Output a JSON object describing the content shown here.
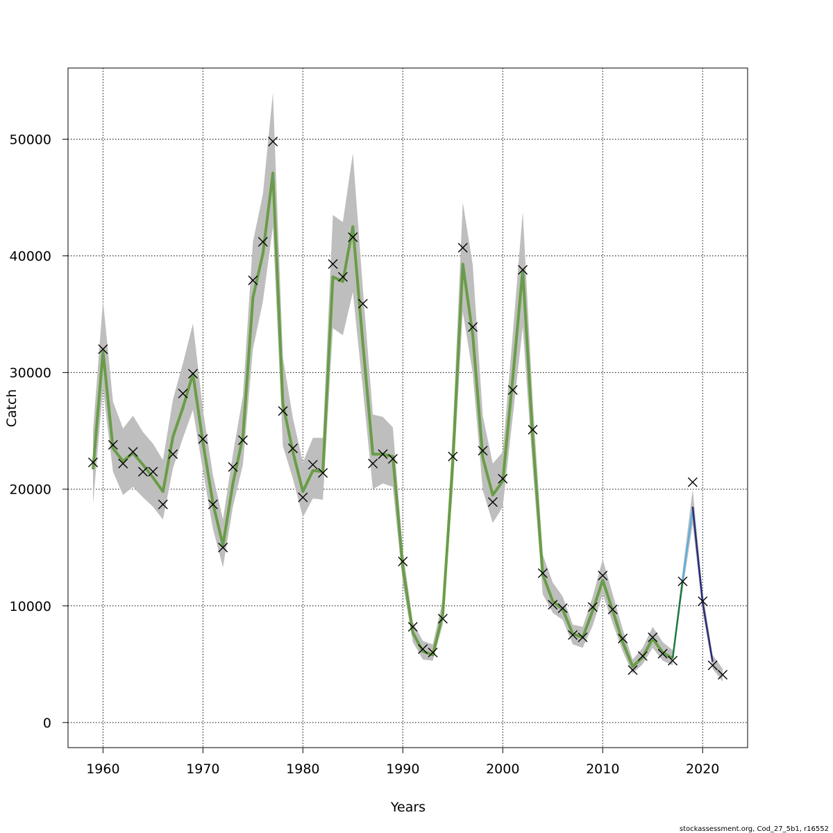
{
  "chart_data": {
    "type": "line",
    "title": "",
    "xlabel": "Years",
    "ylabel": "Catch",
    "xlim": [
      1956.5,
      2024.5
    ],
    "ylim": [
      -2150,
      56100
    ],
    "x_ticks": [
      1960,
      1970,
      1980,
      1990,
      2000,
      2010,
      2020
    ],
    "y_ticks": [
      0,
      10000,
      20000,
      30000,
      40000,
      50000
    ],
    "grid": true,
    "footer": "stockassessment.org, Cod_27_5b1, r16552",
    "observed": {
      "marker": "x",
      "x": [
        1959,
        1960,
        1961,
        1962,
        1963,
        1964,
        1965,
        1966,
        1967,
        1968,
        1969,
        1970,
        1971,
        1972,
        1973,
        1974,
        1975,
        1976,
        1977,
        1978,
        1979,
        1980,
        1981,
        1982,
        1983,
        1984,
        1985,
        1986,
        1987,
        1988,
        1989,
        1990,
        1991,
        1992,
        1993,
        1994,
        1995,
        1996,
        1997,
        1998,
        1999,
        2000,
        2001,
        2002,
        2003,
        2004,
        2005,
        2006,
        2007,
        2008,
        2009,
        2010,
        2011,
        2012,
        2013,
        2014,
        2015,
        2016,
        2017,
        2018,
        2019,
        2020,
        2021,
        2022
      ],
      "values": [
        22300,
        32000,
        23800,
        22200,
        23200,
        21500,
        21500,
        18700,
        23000,
        28200,
        29900,
        24300,
        18700,
        15000,
        21900,
        24200,
        37900,
        41200,
        49800,
        26700,
        23500,
        19300,
        22100,
        21400,
        39300,
        38200,
        41600,
        35900,
        22200,
        23000,
        22600,
        13800,
        8200,
        6300,
        6000,
        8900,
        22800,
        40700,
        33900,
        23300,
        18900,
        20900,
        28500,
        38800,
        25100,
        12800,
        10100,
        9800,
        7500,
        7300,
        9900,
        12600,
        9700,
        7200,
        4500,
        5700,
        7300,
        5900,
        5300,
        12100,
        20600,
        10400,
        4900,
        4100
      ]
    },
    "estimate": {
      "x": [
        1959,
        1960,
        1961,
        1962,
        1963,
        1964,
        1965,
        1966,
        1967,
        1968,
        1969,
        1970,
        1971,
        1972,
        1973,
        1974,
        1975,
        1976,
        1977,
        1978,
        1979,
        1980,
        1981,
        1982,
        1983,
        1984,
        1985,
        1986,
        1987,
        1988,
        1989,
        1990,
        1991,
        1992,
        1993,
        1994,
        1995,
        1996,
        1997,
        1998,
        1999,
        2000,
        2001,
        2002,
        2003,
        2004,
        2005,
        2006,
        2007,
        2008,
        2009,
        2010,
        2011,
        2012,
        2013,
        2014,
        2015,
        2016,
        2017
      ],
      "values": [
        21700,
        31800,
        23500,
        22400,
        23100,
        22100,
        21000,
        19800,
        24500,
        27000,
        29900,
        24000,
        18800,
        15200,
        20500,
        24500,
        36400,
        40200,
        47100,
        27300,
        23200,
        19800,
        21600,
        21500,
        38200,
        37800,
        42500,
        32500,
        23000,
        23000,
        22800,
        13300,
        7700,
        6100,
        5800,
        9300,
        22300,
        39300,
        33200,
        22700,
        19500,
        20700,
        29500,
        38800,
        24400,
        12700,
        10400,
        9700,
        7600,
        7300,
        9600,
        12200,
        9600,
        6900,
        4800,
        5600,
        7200,
        6000,
        5500
      ],
      "lower": [
        18700,
        28600,
        21500,
        19500,
        20200,
        19300,
        18500,
        17400,
        21800,
        24400,
        26800,
        21600,
        16600,
        13300,
        18500,
        22100,
        32000,
        36100,
        42500,
        23700,
        20900,
        17600,
        19200,
        19100,
        33800,
        33200,
        36900,
        28600,
        20000,
        20500,
        20200,
        11900,
        6900,
        5400,
        5300,
        8400,
        20100,
        35200,
        29900,
        19900,
        17100,
        18500,
        26200,
        33900,
        21800,
        11000,
        9400,
        8800,
        6700,
        6400,
        8300,
        11000,
        8500,
        6100,
        4200,
        5000,
        6400,
        5300,
        4900
      ],
      "upper": [
        25000,
        36200,
        27500,
        25200,
        26300,
        24900,
        23900,
        22500,
        27700,
        30800,
        34200,
        26800,
        21200,
        17400,
        23000,
        28000,
        41200,
        45300,
        54000,
        31300,
        26100,
        22300,
        24400,
        24400,
        43500,
        42900,
        48800,
        37200,
        26400,
        26200,
        25300,
        14800,
        8600,
        7000,
        6700,
        10500,
        24900,
        44600,
        39200,
        26300,
        22200,
        23200,
        33300,
        43800,
        27600,
        14400,
        12000,
        10800,
        8400,
        8200,
        10800,
        14000,
        11000,
        8000,
        5400,
        6400,
        8200,
        6900,
        6200
      ]
    },
    "forecast_segments": [
      {
        "color": "#1b7a3e",
        "x": [
          2017,
          2018
        ],
        "values": [
          5500,
          12200
        ]
      },
      {
        "color": "#5aaee0",
        "x": [
          2018,
          2019,
          2020
        ],
        "values": [
          12200,
          18300,
          10400
        ]
      },
      {
        "color": "#2c2c74",
        "x": [
          2019,
          2020,
          2021
        ],
        "values": [
          18500,
          10300,
          5200
        ]
      },
      {
        "color": "#a3a3a3",
        "x": [
          2021,
          2022
        ],
        "values": [
          5000,
          4000
        ]
      }
    ],
    "forecast_band": {
      "x": [
        2017,
        2018,
        2019,
        2020,
        2021,
        2022
      ],
      "lower": [
        5200,
        11400,
        17000,
        9500,
        4600,
        3500
      ],
      "upper": [
        5900,
        13000,
        20000,
        11200,
        5800,
        4600
      ]
    },
    "colors": {
      "estimate_line": "#6b9f2a",
      "estimate_inner": "#5c8fd6",
      "band": "#bebebe",
      "grid": "#000000",
      "marker": "#000000"
    }
  }
}
